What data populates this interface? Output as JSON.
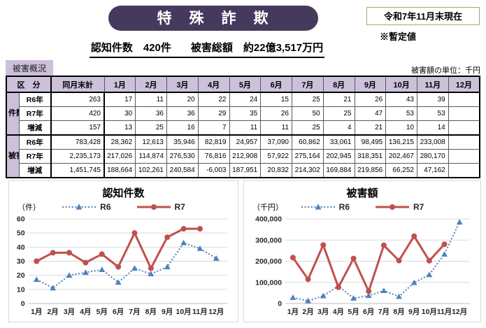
{
  "page": {
    "title": "特　殊　詐　欺",
    "date_box": "令和7年11月末現在",
    "provisional_note": "※暫定値",
    "subtitle_cases": "認知件数　420件",
    "subtitle_amount": "被害総額　約22億3,517万円",
    "section_badge": "被害概況",
    "unit_note": "被害額の単位：千円"
  },
  "colors": {
    "title_bg": "#463a5c",
    "header_fill": "#ccc0da",
    "r6_blue": "#4f81bd",
    "r7_red": "#c0504d",
    "gridline": "#d9d9d9"
  },
  "table": {
    "corner_header": "区　分",
    "total_header": "同月末計",
    "month_headers": [
      "1月",
      "2月",
      "3月",
      "4月",
      "5月",
      "6月",
      "7月",
      "8月",
      "9月",
      "10月",
      "11月",
      "12月"
    ],
    "groups": [
      {
        "label": "件数",
        "rows": [
          {
            "label": "R6年",
            "total": "263",
            "values": [
              "17",
              "11",
              "20",
              "22",
              "24",
              "15",
              "25",
              "21",
              "26",
              "43",
              "39",
              ""
            ]
          },
          {
            "label": "R7年",
            "total": "420",
            "values": [
              "30",
              "36",
              "36",
              "29",
              "35",
              "26",
              "50",
              "25",
              "47",
              "53",
              "53",
              ""
            ]
          },
          {
            "label": "増減",
            "total": "157",
            "values": [
              "13",
              "25",
              "16",
              "7",
              "11",
              "11",
              "25",
              "4",
              "21",
              "10",
              "14",
              ""
            ]
          }
        ]
      },
      {
        "label": "被害額",
        "rows": [
          {
            "label": "R6年",
            "total": "783,428",
            "values": [
              "28,362",
              "12,613",
              "35,946",
              "82,819",
              "24,957",
              "37,090",
              "60,862",
              "33,061",
              "98,495",
              "136,215",
              "233,008",
              ""
            ]
          },
          {
            "label": "R7年",
            "total": "2,235,173",
            "values": [
              "217,026",
              "114,874",
              "276,530",
              "76,816",
              "212,908",
              "57,922",
              "275,164",
              "202,945",
              "318,351",
              "202,467",
              "280,170",
              ""
            ]
          },
          {
            "label": "増減",
            "total": "1,451,745",
            "values": [
              "188,664",
              "102,261",
              "240,584",
              "-6,003",
              "187,951",
              "20,832",
              "214,302",
              "169,884",
              "219,856",
              "66,252",
              "47,162",
              ""
            ]
          }
        ]
      }
    ]
  },
  "chart_data": [
    {
      "type": "line",
      "title": "認知件数",
      "unit_label": "（件）",
      "categories": [
        "1月",
        "2月",
        "3月",
        "4月",
        "5月",
        "6月",
        "7月",
        "8月",
        "9月",
        "10月",
        "11月",
        "12月"
      ],
      "series": [
        {
          "name": "R6",
          "color": "#4f81bd",
          "style": "dotted",
          "marker": "triangle",
          "values": [
            17,
            11,
            20,
            22,
            24,
            15,
            25,
            21,
            26,
            43,
            39,
            32
          ]
        },
        {
          "name": "R7",
          "color": "#c0504d",
          "style": "solid",
          "marker": "circle",
          "values": [
            30,
            36,
            36,
            29,
            35,
            26,
            50,
            25,
            47,
            53,
            53,
            null
          ]
        }
      ],
      "ylim": [
        0,
        60
      ],
      "ytick_step": 10,
      "grid": true,
      "legend_position": "top"
    },
    {
      "type": "line",
      "title": "被害額",
      "unit_label": "（千円）",
      "categories": [
        "1月",
        "2月",
        "3月",
        "4月",
        "5月",
        "6月",
        "7月",
        "8月",
        "9月",
        "10月",
        "11月",
        "12月"
      ],
      "series": [
        {
          "name": "R6",
          "color": "#4f81bd",
          "style": "dotted",
          "marker": "triangle",
          "values": [
            28362,
            12613,
            35946,
            82819,
            24957,
            37090,
            60862,
            33061,
            98495,
            136215,
            233008,
            385000
          ]
        },
        {
          "name": "R7",
          "color": "#c0504d",
          "style": "solid",
          "marker": "circle",
          "values": [
            217026,
            114874,
            276530,
            76816,
            212908,
            57922,
            275164,
            202945,
            318351,
            202467,
            280170,
            null
          ]
        }
      ],
      "ylim": [
        0,
        400000
      ],
      "ytick_step": 100000,
      "grid": true,
      "legend_position": "top"
    }
  ]
}
